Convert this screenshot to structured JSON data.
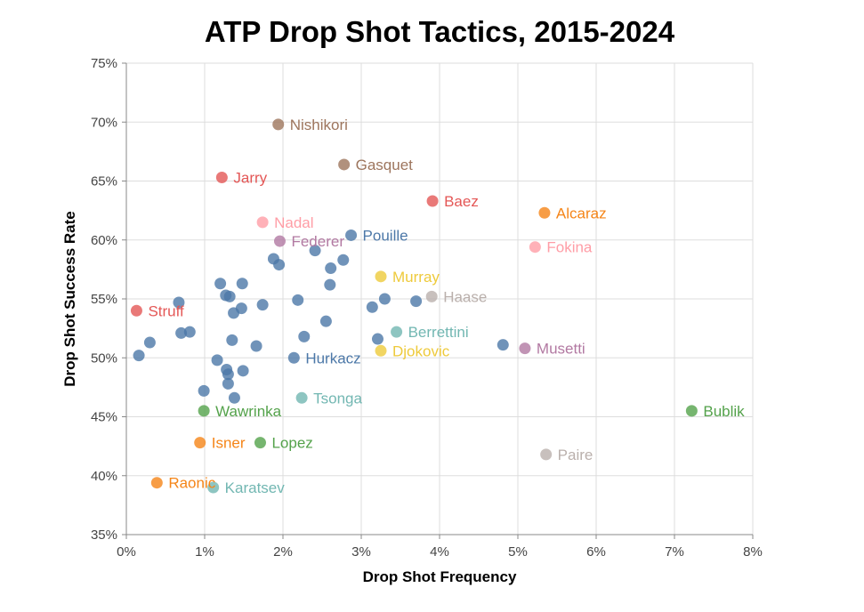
{
  "chart_data": {
    "type": "scatter",
    "title": "ATP Drop Shot Tactics, 2015-2024",
    "xlabel": "Drop Shot Frequency",
    "ylabel": "Drop Shot Success Rate",
    "xlim": [
      0,
      8
    ],
    "ylim": [
      35,
      75
    ],
    "x_unit": "%",
    "y_unit": "%",
    "x_ticks": [
      "0%",
      "1%",
      "2%",
      "3%",
      "4%",
      "5%",
      "6%",
      "7%",
      "8%"
    ],
    "y_ticks": [
      "35%",
      "40%",
      "45%",
      "50%",
      "55%",
      "60%",
      "65%",
      "70%",
      "75%"
    ],
    "grid": true,
    "default_color": "#4c78a8",
    "points": [
      {
        "label": "Nishikori",
        "x": 1.94,
        "y": 69.8,
        "color": "#9d755d"
      },
      {
        "label": "Gasquet",
        "x": 2.78,
        "y": 66.4,
        "color": "#9d755d"
      },
      {
        "label": "Jarry",
        "x": 1.22,
        "y": 65.3,
        "color": "#e45756"
      },
      {
        "label": "Baez",
        "x": 3.91,
        "y": 63.3,
        "color": "#e45756"
      },
      {
        "label": "Alcaraz",
        "x": 5.34,
        "y": 62.3,
        "color": "#f58518"
      },
      {
        "label": "Nadal",
        "x": 1.74,
        "y": 61.5,
        "color": "#ff9da6"
      },
      {
        "label": "Pouille",
        "x": 2.87,
        "y": 60.4,
        "color": "#4c78a8"
      },
      {
        "label": "Federer",
        "x": 1.96,
        "y": 59.9,
        "color": "#b279a2"
      },
      {
        "label": "Fokina",
        "x": 5.22,
        "y": 59.4,
        "color": "#ff9da6"
      },
      {
        "label": "Murray",
        "x": 3.25,
        "y": 56.9,
        "color": "#eeca3b"
      },
      {
        "label": "Haase",
        "x": 3.9,
        "y": 55.2,
        "color": "#bab0ac"
      },
      {
        "label": "Struff",
        "x": 0.13,
        "y": 54.0,
        "color": "#e45756"
      },
      {
        "label": "Berrettini",
        "x": 3.45,
        "y": 52.2,
        "color": "#72b7b2"
      },
      {
        "label": "Musetti",
        "x": 5.09,
        "y": 50.8,
        "color": "#b279a2"
      },
      {
        "label": "Djokovic",
        "x": 3.25,
        "y": 50.6,
        "color": "#eeca3b"
      },
      {
        "label": "Hurkacz",
        "x": 2.14,
        "y": 50.0,
        "color": "#4c78a8"
      },
      {
        "label": "Tsonga",
        "x": 2.24,
        "y": 46.6,
        "color": "#72b7b2"
      },
      {
        "label": "Wawrinka",
        "x": 0.99,
        "y": 45.5,
        "color": "#54a24b"
      },
      {
        "label": "Bublik",
        "x": 7.22,
        "y": 45.5,
        "color": "#54a24b"
      },
      {
        "label": "Isner",
        "x": 0.94,
        "y": 42.8,
        "color": "#f58518"
      },
      {
        "label": "Lopez",
        "x": 1.71,
        "y": 42.8,
        "color": "#54a24b"
      },
      {
        "label": "Paire",
        "x": 5.36,
        "y": 41.8,
        "color": "#bab0ac"
      },
      {
        "label": "Raonic",
        "x": 0.39,
        "y": 39.4,
        "color": "#f58518"
      },
      {
        "label": "Karatsev",
        "x": 1.11,
        "y": 39.0,
        "color": "#72b7b2"
      },
      {
        "label": "",
        "x": 0.16,
        "y": 50.2
      },
      {
        "label": "",
        "x": 0.3,
        "y": 51.3
      },
      {
        "label": "",
        "x": 0.67,
        "y": 54.7
      },
      {
        "label": "",
        "x": 0.7,
        "y": 52.1
      },
      {
        "label": "",
        "x": 0.81,
        "y": 52.2
      },
      {
        "label": "",
        "x": 0.99,
        "y": 47.2
      },
      {
        "label": "",
        "x": 1.16,
        "y": 49.8
      },
      {
        "label": "",
        "x": 1.2,
        "y": 56.3
      },
      {
        "label": "",
        "x": 1.27,
        "y": 55.3
      },
      {
        "label": "",
        "x": 1.28,
        "y": 49.0
      },
      {
        "label": "",
        "x": 1.3,
        "y": 48.6
      },
      {
        "label": "",
        "x": 1.3,
        "y": 47.8
      },
      {
        "label": "",
        "x": 1.32,
        "y": 55.2
      },
      {
        "label": "",
        "x": 1.35,
        "y": 51.5
      },
      {
        "label": "",
        "x": 1.37,
        "y": 53.8
      },
      {
        "label": "",
        "x": 1.38,
        "y": 46.6
      },
      {
        "label": "",
        "x": 1.47,
        "y": 54.2
      },
      {
        "label": "",
        "x": 1.48,
        "y": 56.3
      },
      {
        "label": "",
        "x": 1.49,
        "y": 48.9
      },
      {
        "label": "",
        "x": 1.66,
        "y": 51.0
      },
      {
        "label": "",
        "x": 1.74,
        "y": 54.5
      },
      {
        "label": "",
        "x": 1.88,
        "y": 58.4
      },
      {
        "label": "",
        "x": 1.95,
        "y": 57.9
      },
      {
        "label": "",
        "x": 2.19,
        "y": 54.9
      },
      {
        "label": "",
        "x": 2.27,
        "y": 51.8
      },
      {
        "label": "",
        "x": 2.41,
        "y": 59.1
      },
      {
        "label": "",
        "x": 2.55,
        "y": 53.1
      },
      {
        "label": "",
        "x": 2.6,
        "y": 56.2
      },
      {
        "label": "",
        "x": 2.61,
        "y": 57.6
      },
      {
        "label": "",
        "x": 2.77,
        "y": 58.3
      },
      {
        "label": "",
        "x": 3.14,
        "y": 54.3
      },
      {
        "label": "",
        "x": 3.21,
        "y": 51.6
      },
      {
        "label": "",
        "x": 3.3,
        "y": 55.0
      },
      {
        "label": "",
        "x": 3.7,
        "y": 54.8
      },
      {
        "label": "",
        "x": 4.81,
        "y": 51.1
      }
    ]
  }
}
